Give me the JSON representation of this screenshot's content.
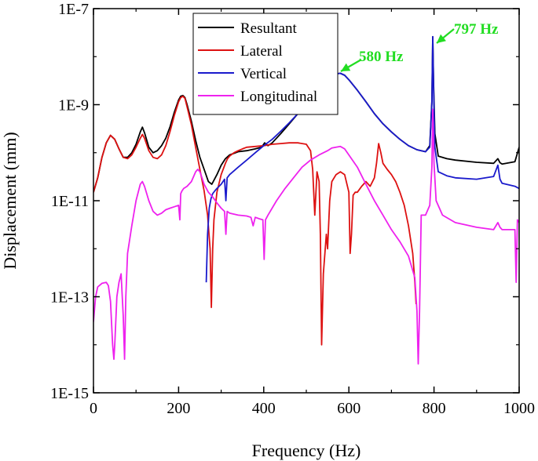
{
  "chart_data": {
    "type": "line",
    "xlabel": "Frequency (Hz)",
    "ylabel": "Displacement (mm)",
    "xlim": [
      0,
      1000
    ],
    "ylim": [
      1e-15,
      1e-07
    ],
    "yscale": "log",
    "x_ticks": [
      0,
      200,
      400,
      600,
      800,
      1000
    ],
    "x_tick_labels": [
      "0",
      "200",
      "400",
      "600",
      "800",
      "1000"
    ],
    "y_ticks": [
      1e-15,
      1e-13,
      1e-11,
      1e-09,
      1e-07
    ],
    "y_tick_labels": [
      "1E-15",
      "1E-13",
      "1E-11",
      "1E-9",
      "1E-7"
    ],
    "grid": false,
    "legend_position": "top-center",
    "annotations": [
      {
        "text": "580 Hz",
        "x": 580,
        "y": 4.5e-09,
        "color": "#22dd22"
      },
      {
        "text": "797 Hz",
        "x": 797,
        "y": 2.6e-08,
        "color": "#22dd22"
      }
    ],
    "series": [
      {
        "name": "Resultant",
        "color": "#000000",
        "x": [
          0,
          10,
          20,
          30,
          40,
          50,
          60,
          70,
          80,
          90,
          100,
          110,
          115,
          120,
          130,
          140,
          150,
          160,
          170,
          180,
          190,
          200,
          205,
          210,
          215,
          220,
          230,
          240,
          250,
          260,
          270,
          278,
          290,
          300,
          310,
          320,
          340,
          360,
          380,
          395,
          402,
          410,
          420,
          440,
          460,
          480,
          500,
          520,
          540,
          560,
          570,
          580,
          590,
          600,
          620,
          640,
          660,
          680,
          700,
          720,
          740,
          760,
          780,
          790,
          795,
          797,
          799,
          802,
          810,
          830,
          850,
          900,
          940,
          950,
          955,
          960,
          990,
          1000
        ],
        "y": [
          1.5e-11,
          3e-11,
          8e-11,
          1.6e-10,
          2.3e-10,
          1.9e-10,
          1.2e-10,
          8e-11,
          8e-11,
          1e-10,
          1.5e-10,
          2.7e-10,
          3.4e-10,
          2.6e-10,
          1.3e-10,
          1e-10,
          1.1e-10,
          1.4e-10,
          2e-10,
          3.5e-10,
          7e-10,
          1.25e-09,
          1.5e-09,
          1.55e-09,
          1.4e-09,
          1e-09,
          4.5e-10,
          1.8e-10,
          8e-11,
          4.5e-11,
          2.5e-11,
          2.2e-11,
          3.5e-11,
          5.5e-11,
          7.5e-11,
          9e-11,
          1.05e-10,
          1.1e-10,
          1.2e-10,
          1.3e-10,
          1.6e-10,
          1.4e-10,
          1.6e-10,
          2.5e-10,
          4e-10,
          6.5e-10,
          1.1e-09,
          1.8e-09,
          2.9e-09,
          4e-09,
          4.4e-09,
          4.5e-09,
          4.1e-09,
          3.3e-09,
          2e-09,
          1.15e-09,
          6.5e-10,
          4e-10,
          2.7e-10,
          1.9e-10,
          1.4e-10,
          1.15e-10,
          1.05e-10,
          1.4e-10,
          1.2e-09,
          2.6e-08,
          2.5e-09,
          2.5e-10,
          8.5e-11,
          7.5e-11,
          7e-11,
          6.3e-11,
          6e-11,
          7.5e-11,
          6.2e-11,
          5.8e-11,
          6.5e-11,
          1.3e-10
        ]
      },
      {
        "name": "Lateral",
        "color": "#dd1111",
        "x": [
          0,
          10,
          20,
          30,
          40,
          50,
          60,
          70,
          80,
          90,
          100,
          110,
          115,
          120,
          130,
          140,
          150,
          160,
          170,
          180,
          190,
          200,
          205,
          210,
          215,
          220,
          230,
          240,
          250,
          260,
          268,
          274,
          277,
          280,
          283,
          290,
          300,
          310,
          315,
          320,
          330,
          340,
          350,
          360,
          380,
          400,
          420,
          440,
          460,
          480,
          500,
          510,
          515,
          520,
          525,
          530,
          533,
          536,
          540,
          547,
          550,
          555,
          560,
          570,
          580,
          590,
          600,
          603,
          606,
          610,
          615,
          620,
          630,
          640,
          650,
          660,
          665,
          670,
          675,
          680,
          690,
          700,
          710,
          720,
          730,
          740,
          750,
          755,
          758
        ],
        "y": [
          1.5e-11,
          3e-11,
          8e-11,
          1.6e-10,
          2.3e-10,
          1.9e-10,
          1.2e-10,
          8e-11,
          7.5e-11,
          9e-11,
          1.3e-10,
          2e-10,
          2.4e-10,
          2e-10,
          1.1e-10,
          8e-11,
          7.5e-11,
          9e-11,
          1.4e-10,
          2.8e-10,
          6e-10,
          1.15e-09,
          1.4e-09,
          1.5e-09,
          1.35e-09,
          9e-10,
          3.8e-10,
          1.3e-10,
          4.5e-11,
          1.6e-11,
          5e-12,
          1e-12,
          6e-14,
          1e-12,
          4e-12,
          1.5e-11,
          3.5e-11,
          6e-11,
          7.5e-11,
          8.5e-11,
          1e-10,
          1.1e-10,
          1.2e-10,
          1.3e-10,
          1.35e-10,
          1.4e-10,
          1.5e-10,
          1.55e-10,
          1.6e-10,
          1.6e-10,
          1.5e-10,
          1.1e-10,
          4.5e-11,
          5e-12,
          4e-11,
          2.5e-11,
          2e-12,
          1e-14,
          3e-13,
          2e-12,
          1e-12,
          1e-11,
          2.5e-11,
          3.5e-11,
          4e-11,
          3.5e-11,
          1.5e-11,
          8e-13,
          2e-12,
          1.3e-11,
          1.5e-11,
          1.5e-11,
          2e-11,
          2.5e-11,
          2e-11,
          3e-11,
          6e-11,
          1.55e-10,
          1e-10,
          6e-11,
          4.5e-11,
          3.5e-11,
          2.5e-11,
          1.5e-11,
          8e-12,
          3e-12,
          8e-13,
          2e-13,
          7e-14
        ]
      },
      {
        "name": "Vertical",
        "color": "#1a1acc",
        "x": [
          265,
          268,
          272,
          276,
          280,
          285,
          290,
          300,
          308,
          311,
          314,
          320,
          340,
          360,
          380,
          400,
          420,
          440,
          460,
          480,
          500,
          520,
          540,
          560,
          570,
          580,
          590,
          600,
          620,
          640,
          660,
          680,
          700,
          720,
          740,
          760,
          780,
          790,
          795,
          797,
          799,
          802,
          810,
          830,
          850,
          900,
          940,
          950,
          955,
          960,
          990,
          1000
        ],
        "y": [
          2e-13,
          2e-12,
          7e-12,
          1.1e-11,
          1.4e-11,
          1.6e-11,
          1.8e-11,
          2.2e-11,
          2.8e-11,
          1e-11,
          3e-11,
          3.5e-11,
          5e-11,
          7e-11,
          1e-10,
          1.4e-10,
          1.9e-10,
          2.8e-10,
          4.2e-10,
          6.5e-10,
          1.1e-09,
          1.8e-09,
          2.9e-09,
          4e-09,
          4.4e-09,
          4.5e-09,
          4.1e-09,
          3.3e-09,
          2e-09,
          1.15e-09,
          6.5e-10,
          4e-10,
          2.7e-10,
          1.9e-10,
          1.4e-10,
          1.15e-10,
          1.05e-10,
          1.3e-10,
          1.1e-09,
          2.6e-08,
          2e-09,
          1.3e-10,
          4e-11,
          3.3e-11,
          3e-11,
          2.8e-11,
          3.2e-11,
          5.5e-11,
          2.8e-11,
          2.3e-11,
          2e-11,
          1.8e-11
        ]
      },
      {
        "name": "Longitudinal",
        "color": "#ee22ee",
        "x": [
          0,
          5,
          10,
          20,
          30,
          35,
          40,
          45,
          48,
          50,
          55,
          60,
          65,
          70,
          73,
          76,
          80,
          90,
          100,
          110,
          115,
          120,
          130,
          140,
          150,
          160,
          170,
          180,
          190,
          200,
          203,
          205,
          208,
          212,
          220,
          230,
          240,
          245,
          250,
          255,
          260,
          270,
          280,
          290,
          300,
          308,
          311,
          314,
          320,
          340,
          360,
          370,
          375,
          380,
          390,
          398,
          401,
          404,
          410,
          430,
          450,
          470,
          490,
          510,
          530,
          550,
          560,
          570,
          580,
          590,
          600,
          620,
          640,
          660,
          680,
          700,
          720,
          740,
          755,
          760,
          763,
          766,
          770,
          780,
          790,
          795,
          797,
          800,
          805,
          820,
          850,
          900,
          940,
          950,
          955,
          960,
          990,
          993,
          996,
          1000
        ],
        "y": [
          3e-14,
          1e-13,
          1.6e-13,
          1.9e-13,
          2e-13,
          1.7e-13,
          8e-14,
          1e-14,
          5e-15,
          1e-14,
          1e-13,
          2e-13,
          3e-13,
          4e-14,
          5e-15,
          1e-13,
          8e-13,
          3e-12,
          1e-11,
          2.2e-11,
          2.5e-11,
          2e-11,
          1e-11,
          6e-12,
          5e-12,
          5.5e-12,
          6.5e-12,
          7e-12,
          7.5e-12,
          8e-12,
          4e-12,
          1.4e-11,
          1.6e-11,
          1.8e-11,
          2e-11,
          2.5e-11,
          4e-11,
          4.5e-11,
          4e-11,
          3e-11,
          2.2e-11,
          1.5e-11,
          1.2e-11,
          9e-12,
          7e-12,
          6e-12,
          2e-12,
          6e-12,
          5.5e-12,
          5e-12,
          4.8e-12,
          4.5e-12,
          3e-12,
          4.5e-12,
          4.2e-12,
          4e-12,
          6e-13,
          4e-12,
          5e-12,
          1e-11,
          1.8e-11,
          3e-11,
          5e-11,
          7e-11,
          9e-11,
          1.1e-10,
          1.25e-10,
          1.3e-10,
          1.35e-10,
          1.2e-10,
          9e-11,
          5e-11,
          2.2e-11,
          1e-11,
          5e-12,
          2.5e-12,
          1.4e-12,
          7e-13,
          2.5e-13,
          5e-14,
          4e-15,
          5e-14,
          5e-12,
          5e-12,
          8e-12,
          5e-11,
          8e-10,
          6e-11,
          1e-11,
          5e-12,
          3.5e-12,
          2.8e-12,
          2.5e-12,
          3.5e-12,
          2.8e-12,
          2.5e-12,
          2.5e-12,
          2e-13,
          4e-12,
          3.5e-12
        ]
      }
    ]
  }
}
